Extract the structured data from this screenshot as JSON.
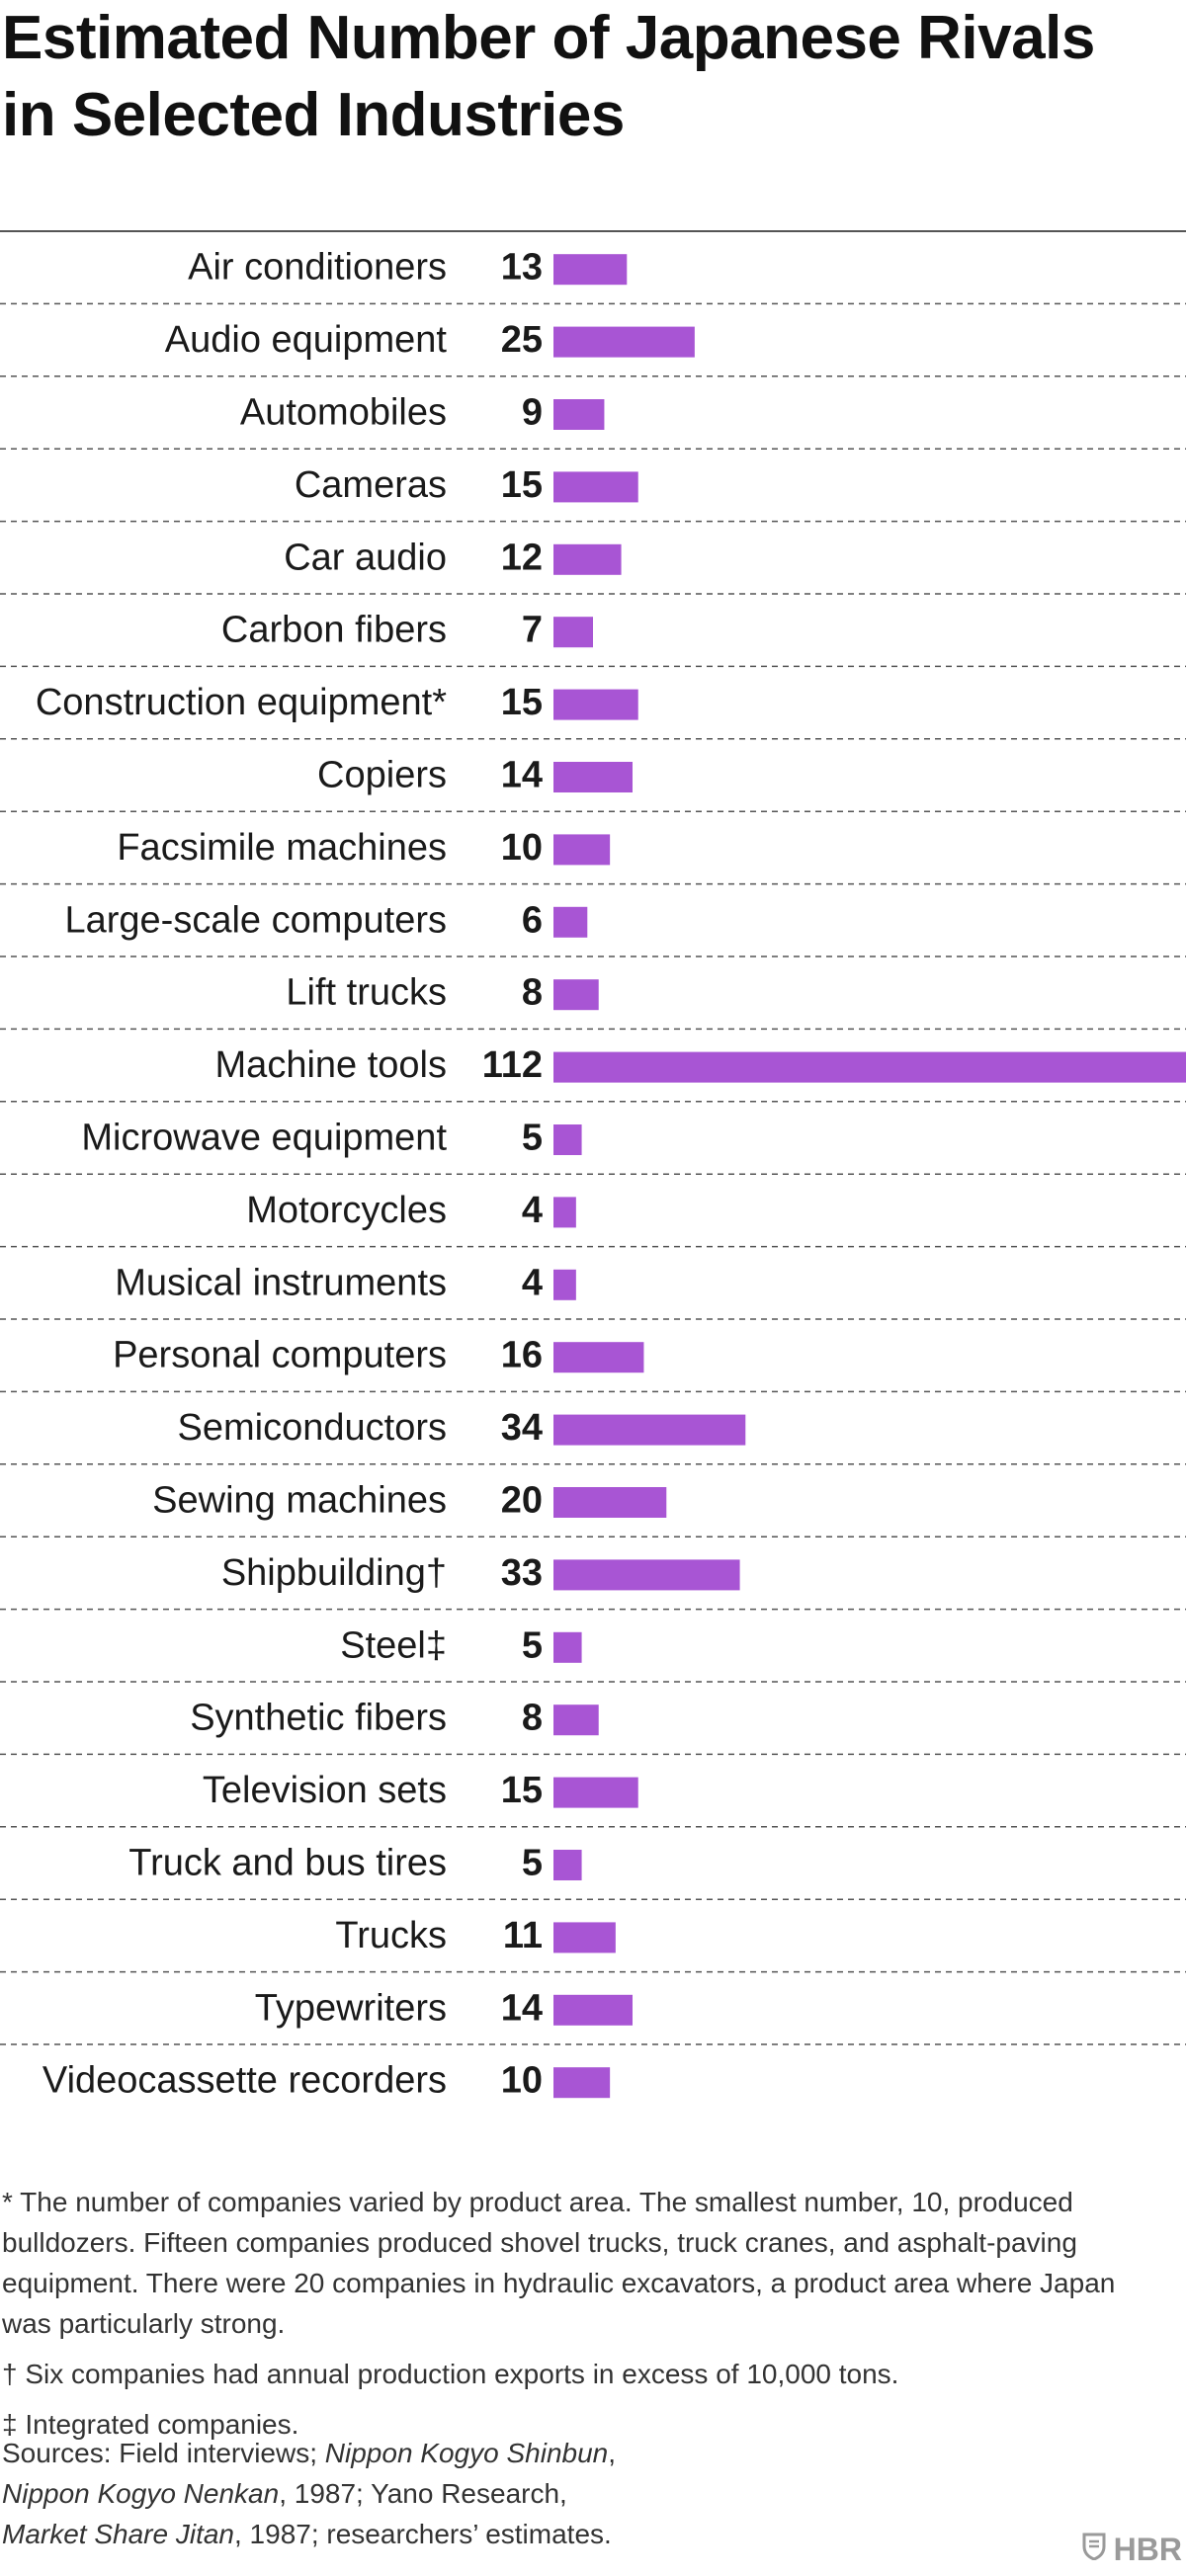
{
  "title": "Estimated Number of Japanese Rivals in Selected Industries",
  "colors": {
    "bar": "#a855d4",
    "text": "#1a1a1a",
    "note": "#333333",
    "rule": "#555555",
    "logo": "#9a9a9a"
  },
  "chart_data": {
    "type": "bar",
    "orientation": "horizontal",
    "title": "Estimated Number of Japanese Rivals in Selected Industries",
    "xlabel": "",
    "ylabel": "",
    "grid": false,
    "xlim": [
      0,
      112
    ],
    "categories": [
      "Air conditioners",
      "Audio equipment",
      "Automobiles",
      "Cameras",
      "Car audio",
      "Carbon fibers",
      "Construction equipment*",
      "Copiers",
      "Facsimile machines",
      "Large-scale computers",
      "Lift trucks",
      "Machine tools",
      "Microwave equipment",
      "Motorcycles",
      "Musical instruments",
      "Personal computers",
      "Semiconductors",
      "Sewing machines",
      "Shipbuilding†",
      "Steel‡",
      "Synthetic fibers",
      "Television sets",
      "Truck and bus tires",
      "Trucks",
      "Typewriters",
      "Videocassette recorders"
    ],
    "values": [
      13,
      25,
      9,
      15,
      12,
      7,
      15,
      14,
      10,
      6,
      8,
      112,
      5,
      4,
      4,
      16,
      34,
      20,
      33,
      5,
      8,
      15,
      5,
      11,
      14,
      10
    ]
  },
  "notes": {
    "construction": "* The number of companies varied by product area. The smallest number, 10, produced bulldozers. Fifteen companies produced shovel trucks, truck cranes, and asphalt-paving equipment. There were 20 companies in hydraulic excavators, a product area where Japan was particularly strong.",
    "shipbuilding": "† Six companies had annual production exports in excess of 10,000 tons.",
    "steel": "‡ Integrated companies."
  },
  "sources": {
    "prefix": "Sources: Field interviews; ",
    "ref1": "Nippon Kogyo Shinbun",
    "sep1": ",",
    "ref2": "Nippon Kogyo Nenkan",
    "mid1": ", 1987; Yano Research,",
    "ref3": "Market Share Jitan",
    "end": ", 1987; researchers’ estimates."
  },
  "logo": {
    "text": "HBR",
    "icon": "shield-icon"
  }
}
